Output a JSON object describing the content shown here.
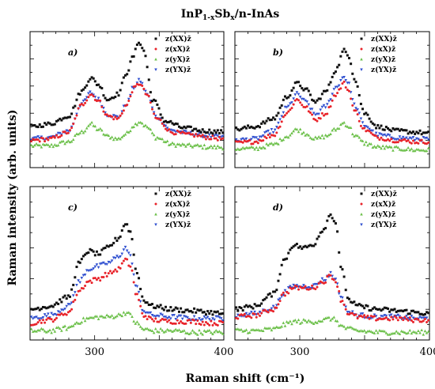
{
  "figure": {
    "title_main": "InP",
    "title_sub": "1-x",
    "title_mid": "Sb",
    "title_sub2": "x",
    "title_end": "/n-InAs",
    "xlabel": "Raman shift (cm⁻¹)",
    "ylabel": "Raman intensity (arb. units)"
  },
  "legend_labels": [
    "z(XX)z̄",
    "z(xX)z̄",
    "z(yX)z̄",
    "z(YX)z̄"
  ],
  "colors": {
    "XX": "#111111",
    "xX": "#e8232a",
    "yX": "#6cc04a",
    "YX": "#2f4fd0"
  },
  "chart_data": [
    {
      "type": "scatter",
      "panel_label": "a)",
      "x_range": [
        250,
        400
      ],
      "xticks": [
        "300",
        "400"
      ],
      "series": [
        {
          "name": "z(XX)z̄",
          "x": [
            250,
            265,
            280,
            290,
            297,
            303,
            310,
            318,
            325,
            330,
            334,
            338,
            345,
            355,
            370,
            385,
            400
          ],
          "y": [
            0.3,
            0.32,
            0.38,
            0.56,
            0.66,
            0.61,
            0.5,
            0.54,
            0.7,
            0.82,
            0.93,
            0.86,
            0.5,
            0.34,
            0.29,
            0.27,
            0.26
          ]
        },
        {
          "name": "z(xX)z̄",
          "x": [
            250,
            265,
            280,
            290,
            297,
            303,
            310,
            318,
            325,
            330,
            335,
            340,
            348,
            360,
            375,
            390,
            400
          ],
          "y": [
            0.2,
            0.21,
            0.26,
            0.46,
            0.54,
            0.49,
            0.38,
            0.36,
            0.46,
            0.58,
            0.62,
            0.54,
            0.36,
            0.26,
            0.24,
            0.22,
            0.21
          ]
        },
        {
          "name": "z(yX)z̄",
          "x": [
            250,
            265,
            280,
            290,
            297,
            303,
            310,
            318,
            325,
            330,
            335,
            340,
            348,
            360,
            375,
            390,
            400
          ],
          "y": [
            0.16,
            0.16,
            0.19,
            0.26,
            0.32,
            0.28,
            0.23,
            0.21,
            0.25,
            0.31,
            0.34,
            0.3,
            0.22,
            0.17,
            0.16,
            0.15,
            0.15
          ]
        },
        {
          "name": "z(YX)z̄",
          "x": [
            250,
            265,
            280,
            290,
            297,
            303,
            310,
            318,
            325,
            330,
            335,
            340,
            348,
            360,
            375,
            390,
            400
          ],
          "y": [
            0.21,
            0.22,
            0.27,
            0.47,
            0.55,
            0.5,
            0.39,
            0.37,
            0.47,
            0.59,
            0.64,
            0.55,
            0.37,
            0.27,
            0.25,
            0.23,
            0.22
          ]
        }
      ]
    },
    {
      "type": "scatter",
      "panel_label": "b)",
      "x_range": [
        250,
        400
      ],
      "xticks": [
        "300",
        "400"
      ],
      "series": [
        {
          "name": "z(XX)z̄",
          "x": [
            250,
            265,
            280,
            290,
            298,
            305,
            312,
            320,
            328,
            334,
            338,
            342,
            350,
            360,
            375,
            390,
            400
          ],
          "y": [
            0.28,
            0.3,
            0.36,
            0.52,
            0.62,
            0.57,
            0.48,
            0.56,
            0.72,
            0.86,
            0.82,
            0.66,
            0.4,
            0.3,
            0.27,
            0.26,
            0.25
          ]
        },
        {
          "name": "z(xX)z̄",
          "x": [
            250,
            265,
            280,
            290,
            298,
            305,
            312,
            320,
            328,
            334,
            338,
            342,
            350,
            360,
            375,
            390,
            400
          ],
          "y": [
            0.18,
            0.19,
            0.24,
            0.4,
            0.5,
            0.44,
            0.35,
            0.4,
            0.54,
            0.62,
            0.56,
            0.42,
            0.28,
            0.22,
            0.2,
            0.19,
            0.19
          ]
        },
        {
          "name": "z(yX)z̄",
          "x": [
            250,
            265,
            280,
            290,
            298,
            305,
            312,
            320,
            328,
            334,
            338,
            342,
            350,
            360,
            375,
            390,
            400
          ],
          "y": [
            0.14,
            0.14,
            0.17,
            0.23,
            0.28,
            0.25,
            0.21,
            0.23,
            0.28,
            0.33,
            0.3,
            0.24,
            0.18,
            0.15,
            0.14,
            0.13,
            0.13
          ]
        },
        {
          "name": "z(YX)z̄",
          "x": [
            250,
            265,
            280,
            290,
            298,
            305,
            312,
            320,
            328,
            334,
            338,
            342,
            350,
            360,
            375,
            390,
            400
          ],
          "y": [
            0.2,
            0.21,
            0.27,
            0.44,
            0.54,
            0.48,
            0.39,
            0.45,
            0.59,
            0.67,
            0.61,
            0.46,
            0.31,
            0.24,
            0.22,
            0.21,
            0.21
          ]
        }
      ]
    },
    {
      "type": "scatter",
      "panel_label": "c)",
      "x_range": [
        250,
        400
      ],
      "xticks": [
        "300",
        "400"
      ],
      "series": [
        {
          "name": "z(XX)z̄",
          "x": [
            250,
            265,
            280,
            288,
            295,
            303,
            310,
            318,
            324,
            328,
            332,
            338,
            345,
            360,
            375,
            390,
            400
          ],
          "y": [
            0.2,
            0.22,
            0.28,
            0.5,
            0.58,
            0.56,
            0.6,
            0.66,
            0.76,
            0.7,
            0.46,
            0.26,
            0.22,
            0.2,
            0.19,
            0.18,
            0.17
          ]
        },
        {
          "name": "z(xX)z̄",
          "x": [
            250,
            265,
            280,
            288,
            295,
            303,
            310,
            318,
            324,
            328,
            332,
            338,
            345,
            360,
            375,
            390,
            400
          ],
          "y": [
            0.11,
            0.13,
            0.18,
            0.32,
            0.38,
            0.4,
            0.43,
            0.46,
            0.52,
            0.48,
            0.3,
            0.16,
            0.13,
            0.12,
            0.12,
            0.11,
            0.11
          ]
        },
        {
          "name": "z(yX)z̄",
          "x": [
            250,
            265,
            280,
            288,
            295,
            303,
            310,
            318,
            324,
            328,
            332,
            338,
            345,
            360,
            375,
            390,
            400
          ],
          "y": [
            0.06,
            0.06,
            0.08,
            0.12,
            0.14,
            0.15,
            0.15,
            0.16,
            0.18,
            0.16,
            0.11,
            0.07,
            0.06,
            0.06,
            0.05,
            0.05,
            0.05
          ]
        },
        {
          "name": "z(YX)z̄",
          "x": [
            250,
            265,
            280,
            288,
            295,
            303,
            310,
            318,
            324,
            328,
            332,
            338,
            345,
            360,
            375,
            390,
            400
          ],
          "y": [
            0.14,
            0.16,
            0.22,
            0.38,
            0.46,
            0.48,
            0.5,
            0.54,
            0.6,
            0.54,
            0.35,
            0.19,
            0.16,
            0.15,
            0.14,
            0.14,
            0.14
          ]
        }
      ]
    },
    {
      "type": "scatter",
      "panel_label": "d)",
      "x_range": [
        250,
        400
      ],
      "xticks": [
        "300",
        "400"
      ],
      "series": [
        {
          "name": "z(XX)z̄",
          "x": [
            250,
            265,
            280,
            288,
            295,
            303,
            310,
            318,
            324,
            328,
            332,
            338,
            345,
            360,
            375,
            390,
            400
          ],
          "y": [
            0.2,
            0.22,
            0.3,
            0.52,
            0.62,
            0.6,
            0.62,
            0.72,
            0.82,
            0.76,
            0.46,
            0.26,
            0.22,
            0.2,
            0.19,
            0.18,
            0.17
          ]
        },
        {
          "name": "z(xX)z̄",
          "x": [
            250,
            265,
            280,
            288,
            295,
            303,
            310,
            318,
            324,
            328,
            332,
            338,
            345,
            360,
            375,
            390,
            400
          ],
          "y": [
            0.15,
            0.16,
            0.2,
            0.3,
            0.34,
            0.34,
            0.34,
            0.38,
            0.42,
            0.38,
            0.26,
            0.17,
            0.15,
            0.14,
            0.14,
            0.13,
            0.13
          ]
        },
        {
          "name": "z(yX)z̄",
          "x": [
            250,
            265,
            280,
            288,
            295,
            303,
            310,
            318,
            324,
            328,
            332,
            338,
            345,
            360,
            375,
            390,
            400
          ],
          "y": [
            0.06,
            0.06,
            0.07,
            0.1,
            0.12,
            0.12,
            0.12,
            0.13,
            0.14,
            0.13,
            0.09,
            0.07,
            0.06,
            0.05,
            0.05,
            0.05,
            0.05
          ]
        },
        {
          "name": "z(YX)z̄",
          "x": [
            250,
            265,
            280,
            288,
            295,
            303,
            310,
            318,
            324,
            328,
            332,
            338,
            345,
            360,
            375,
            390,
            400
          ],
          "y": [
            0.16,
            0.17,
            0.21,
            0.31,
            0.35,
            0.35,
            0.35,
            0.39,
            0.43,
            0.39,
            0.27,
            0.18,
            0.16,
            0.15,
            0.15,
            0.14,
            0.14
          ]
        }
      ]
    }
  ]
}
